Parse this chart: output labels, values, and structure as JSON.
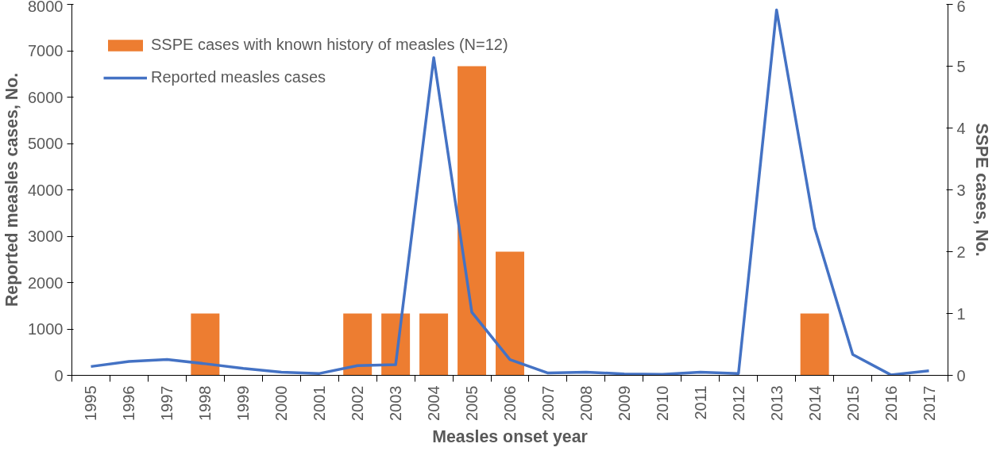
{
  "chart_data": {
    "type": "bar",
    "xlabel": "Measles onset year",
    "ylabel": "Reported measles cases, No.",
    "y2label": "SSPE cases, No.",
    "categories": [
      "1995",
      "1996",
      "1997",
      "1998",
      "1999",
      "2000",
      "2001",
      "2002",
      "2003",
      "2004",
      "2005",
      "2006",
      "2007",
      "2008",
      "2009",
      "2010",
      "2011",
      "2012",
      "2013",
      "2014",
      "2015",
      "2016",
      "2017"
    ],
    "series": [
      {
        "name": "SSPE cases with known history of measles (N=12)",
        "axis": "y2",
        "color": "#ed7d31",
        "values": [
          0,
          0,
          0,
          1,
          0,
          0,
          0,
          1,
          1,
          1,
          5,
          2,
          0,
          0,
          0,
          0,
          0,
          0,
          0,
          1,
          0,
          0,
          0
        ]
      },
      {
        "name": "Reported measles cases",
        "type": "line",
        "color": "#4472c4",
        "values": [
          190,
          300,
          340,
          250,
          150,
          70,
          40,
          210,
          230,
          6850,
          1360,
          340,
          50,
          70,
          30,
          20,
          70,
          40,
          7880,
          3180,
          450,
          10,
          100
        ]
      }
    ],
    "ylim": [
      0,
      8000
    ],
    "yticks": [
      0,
      1000,
      2000,
      3000,
      4000,
      5000,
      6000,
      7000,
      8000
    ],
    "y2lim": [
      0,
      6
    ],
    "y2ticks": [
      0,
      1,
      2,
      3,
      4,
      5,
      6
    ],
    "grid": false,
    "legend": "top left",
    "marker": "none",
    "line_style": "solid"
  }
}
